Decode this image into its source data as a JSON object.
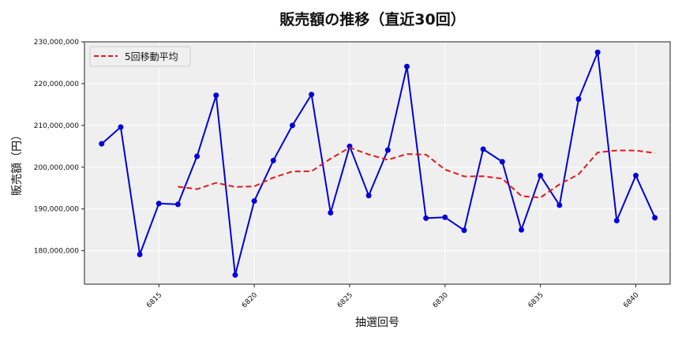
{
  "chart_data": {
    "type": "line",
    "title": "販売額の推移（直近30回）",
    "xlabel": "抽選回号",
    "ylabel": "販売額（円）",
    "x": [
      6812,
      6813,
      6814,
      6815,
      6816,
      6817,
      6818,
      6819,
      6820,
      6821,
      6822,
      6823,
      6824,
      6825,
      6826,
      6827,
      6828,
      6829,
      6830,
      6831,
      6832,
      6833,
      6834,
      6835,
      6836,
      6837,
      6838,
      6839,
      6840,
      6841
    ],
    "series": [
      {
        "name": "販売額",
        "style": "solid-with-markers",
        "color": "#0000dd",
        "values": [
          205600000,
          209600000,
          179100000,
          191300000,
          191100000,
          202600000,
          217200000,
          174200000,
          191900000,
          201600000,
          210000000,
          217400000,
          189100000,
          205000000,
          193200000,
          204100000,
          224100000,
          187800000,
          188000000,
          184900000,
          204300000,
          201300000,
          185000000,
          198000000,
          190900000,
          216300000,
          227500000,
          187200000,
          198000000,
          187900000
        ]
      },
      {
        "name": "5回移動平均",
        "style": "dashed",
        "color": "#e31a1c",
        "values": [
          null,
          null,
          null,
          null,
          195340000,
          194740000,
          196260000,
          195280000,
          195400000,
          197500000,
          198980000,
          199020000,
          202040000,
          204680000,
          203040000,
          201760000,
          203160000,
          203000000,
          199440000,
          197780000,
          197820000,
          197260000,
          193100000,
          192700000,
          195900000,
          198300000,
          203540000,
          204000000,
          203980000,
          203380000
        ]
      }
    ],
    "xticks": [
      6815,
      6820,
      6825,
      6830,
      6835,
      6840
    ],
    "xtick_labels": [
      "6815",
      "6820",
      "6825",
      "6830",
      "6835",
      "6840"
    ],
    "xtick_rotation": 45,
    "yticks": [
      180000000,
      190000000,
      200000000,
      210000000,
      220000000,
      230000000
    ],
    "ytick_labels": [
      "180,000,000",
      "190,000,000",
      "200,000,000",
      "210,000,000",
      "220,000,000",
      "230,000,000"
    ],
    "xlim": [
      6811.1,
      6841.8
    ],
    "ylim": [
      172000000,
      230000000
    ],
    "grid": true,
    "legend": {
      "position": "upper left",
      "entries": [
        "5回移動平均"
      ]
    },
    "background": "#efefef"
  }
}
